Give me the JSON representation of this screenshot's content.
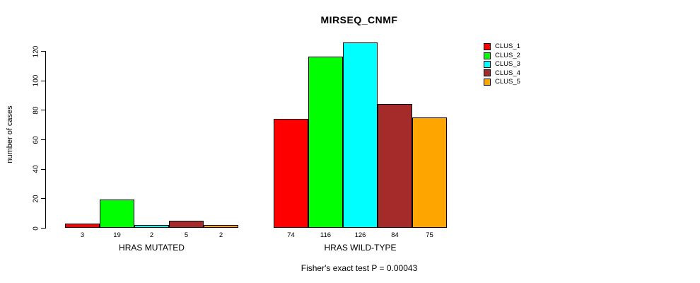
{
  "title": "MIRSEQ_CNMF",
  "annotation": "Fisher's exact test P = 0.00043",
  "y_axis": {
    "label": "number of cases",
    "ticks": [
      0,
      20,
      40,
      60,
      80,
      100,
      120
    ]
  },
  "legend": {
    "items": [
      {
        "label": "CLUS_1",
        "color": "#FF0000"
      },
      {
        "label": "CLUS_2",
        "color": "#00FF00"
      },
      {
        "label": "CLUS_3",
        "color": "#00FFFF"
      },
      {
        "label": "CLUS_4",
        "color": "#A52A2A"
      },
      {
        "label": "CLUS_5",
        "color": "#FFA500"
      }
    ]
  },
  "chart_data": {
    "type": "bar",
    "title": "MIRSEQ_CNMF",
    "xlabel": "",
    "ylabel": "number of cases",
    "ylim": [
      0,
      126
    ],
    "y_ticks": [
      0,
      20,
      40,
      60,
      80,
      100,
      120
    ],
    "grid": false,
    "legend_position": "top-right",
    "categories": [
      "HRAS MUTATED",
      "HRAS WILD-TYPE"
    ],
    "series": [
      {
        "name": "CLUS_1",
        "color": "#FF0000",
        "values": [
          3,
          74
        ]
      },
      {
        "name": "CLUS_2",
        "color": "#00FF00",
        "values": [
          19,
          116
        ]
      },
      {
        "name": "CLUS_3",
        "color": "#00FFFF",
        "values": [
          2,
          126
        ]
      },
      {
        "name": "CLUS_4",
        "color": "#A52A2A",
        "values": [
          5,
          84
        ]
      },
      {
        "name": "CLUS_5",
        "color": "#FFA500",
        "values": [
          2,
          75
        ]
      }
    ],
    "bar_value_labels": {
      "HRAS MUTATED": [
        3,
        19,
        2,
        5,
        2
      ],
      "HRAS WILD-TYPE": [
        74,
        116,
        126,
        84,
        75
      ]
    },
    "annotation": "Fisher's exact test P = 0.00043"
  }
}
